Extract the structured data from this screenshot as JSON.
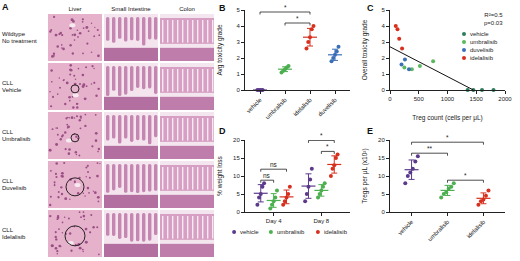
{
  "figure": {
    "panel_a": {
      "panel": "A",
      "columns": [
        "Liver",
        "Small Intestine",
        "Colon"
      ],
      "rows": [
        [
          "Wildtype",
          "No treatment"
        ],
        [
          "CLL",
          "Vehicle"
        ],
        [
          "CLL",
          "Umbralisib"
        ],
        [
          "CLL",
          "Duvelisib"
        ],
        [
          "CLL",
          "Idelalisib"
        ]
      ]
    }
  },
  "chart_data": [
    {
      "panel": "B",
      "type": "strip",
      "y_label": "Avg toxicity grade",
      "categories": [
        "vehicle",
        "umbralisib",
        "idelalisib",
        "duvelisib"
      ],
      "colors": [
        "#5b3a8c",
        "#4caf50",
        "#d7301f",
        "#3b6fb6"
      ],
      "points": [
        [
          0,
          0,
          0,
          0
        ],
        [
          1.1,
          1.2,
          1.3,
          1.4,
          1.5
        ],
        [
          2.6,
          3.0,
          3.3,
          3.8,
          4.0
        ],
        [
          1.8,
          2.0,
          2.2,
          2.4,
          2.7
        ]
      ],
      "means": [
        0,
        1.3,
        3.3,
        2.2
      ],
      "errors": [
        0,
        0.15,
        0.55,
        0.35
      ],
      "ylim": [
        0,
        5
      ],
      "yticks": [
        0,
        1,
        2,
        3,
        4,
        5
      ],
      "significance": [
        {
          "from": "umbralisib",
          "to": "idelalisib",
          "text": "*"
        },
        {
          "from": "vehicle",
          "to": "idelalisib",
          "text": "*"
        }
      ]
    },
    {
      "panel": "C",
      "type": "scatter",
      "x_label": "Treg count (cells per μL)",
      "y_label": "Overall toxicity grade",
      "xlim": [
        0,
        2000
      ],
      "xticks": [
        0,
        500,
        1000,
        1500,
        2000
      ],
      "ylim": [
        0,
        5
      ],
      "yticks": [
        0,
        1,
        2,
        3,
        4,
        5
      ],
      "annotations": [
        "R²=0.5",
        "p=0.03"
      ],
      "legend": "right",
      "series": [
        {
          "name": "vehicle",
          "color": "#2e7d5b",
          "x": [
            1350,
            1450,
            1600,
            1800
          ],
          "values": [
            0,
            0,
            0,
            0
          ]
        },
        {
          "name": "umbralisib",
          "color": "#5cb85c",
          "x": [
            250,
            380,
            520,
            750
          ],
          "values": [
            1.4,
            1.3,
            1.5,
            1.8
          ]
        },
        {
          "name": "duvelisib",
          "color": "#3b6fb6",
          "x": [
            200,
            260,
            330
          ],
          "values": [
            1.6,
            1.9,
            1.3
          ]
        },
        {
          "name": "idelalisib",
          "color": "#d7301f",
          "x": [
            100,
            130,
            160,
            210
          ],
          "values": [
            4.0,
            3.8,
            3.2,
            2.6
          ]
        }
      ],
      "trend": {
        "x": [
          0,
          1450
        ],
        "values": [
          2.7,
          0
        ]
      }
    },
    {
      "panel": "D",
      "type": "groupedstrip",
      "y_label": "% weight loss",
      "categories": [
        "Day 4",
        "Day 8"
      ],
      "ylim": [
        0,
        20
      ],
      "yticks": [
        0,
        5,
        10,
        15,
        20
      ],
      "legend": "bottom",
      "series": [
        {
          "name": "vehicle",
          "color": "#5b3a8c",
          "values": [
            [
              2,
              4,
              5,
              7,
              8
            ],
            [
              3,
              5,
              7,
              9,
              12
            ]
          ],
          "means": [
            5.2,
            7.2
          ],
          "errors": [
            2.4,
            3.4
          ]
        },
        {
          "name": "umbralisib",
          "color": "#4caf50",
          "values": [
            [
              1,
              2,
              3,
              4,
              6
            ],
            [
              4,
              5,
              6,
              7,
              8
            ]
          ],
          "means": [
            3.2,
            6
          ],
          "errors": [
            1.9,
            1.6
          ]
        },
        {
          "name": "idelalisib",
          "color": "#d7301f",
          "values": [
            [
              2,
              3,
              4,
              5,
              7
            ],
            [
              10,
              12,
              13,
              15,
              16
            ]
          ],
          "means": [
            4.2,
            13.2
          ],
          "errors": [
            1.9,
            2.4
          ]
        }
      ],
      "significance": [
        {
          "category": "Day 4",
          "from": "vehicle",
          "to": "umbralisib",
          "text": "ns"
        },
        {
          "category": "Day 4",
          "from": "vehicle",
          "to": "idelalisib",
          "text": "ns"
        },
        {
          "category": "Day 8",
          "from": "umbralisib",
          "to": "idelalisib",
          "text": "*"
        },
        {
          "category": "Day 8",
          "from": "vehicle",
          "to": "idelalisib",
          "text": "*"
        }
      ]
    },
    {
      "panel": "E",
      "type": "strip",
      "y_label": "Tregs per μL (x10²)",
      "categories": [
        "vehicle",
        "umbralisib",
        "idelalisib"
      ],
      "colors": [
        "#5b3a8c",
        "#4caf50",
        "#d7301f"
      ],
      "points": [
        [
          8,
          10,
          11,
          12,
          14,
          15.5
        ],
        [
          4,
          5,
          5.5,
          6.5,
          7,
          8
        ],
        [
          2,
          3,
          3.5,
          4.5,
          6
        ]
      ],
      "means": [
        11.75,
        6,
        3.8
      ],
      "errors": [
        2.7,
        1.4,
        1.5
      ],
      "ylim": [
        0,
        20
      ],
      "yticks": [
        0,
        5,
        10,
        15,
        20
      ],
      "significance": [
        {
          "from": "umbralisib",
          "to": "idelalisib",
          "text": "*"
        },
        {
          "from": "vehicle",
          "to": "umbralisib",
          "text": "**"
        },
        {
          "from": "vehicle",
          "to": "idelalisib",
          "text": "*"
        }
      ]
    }
  ]
}
